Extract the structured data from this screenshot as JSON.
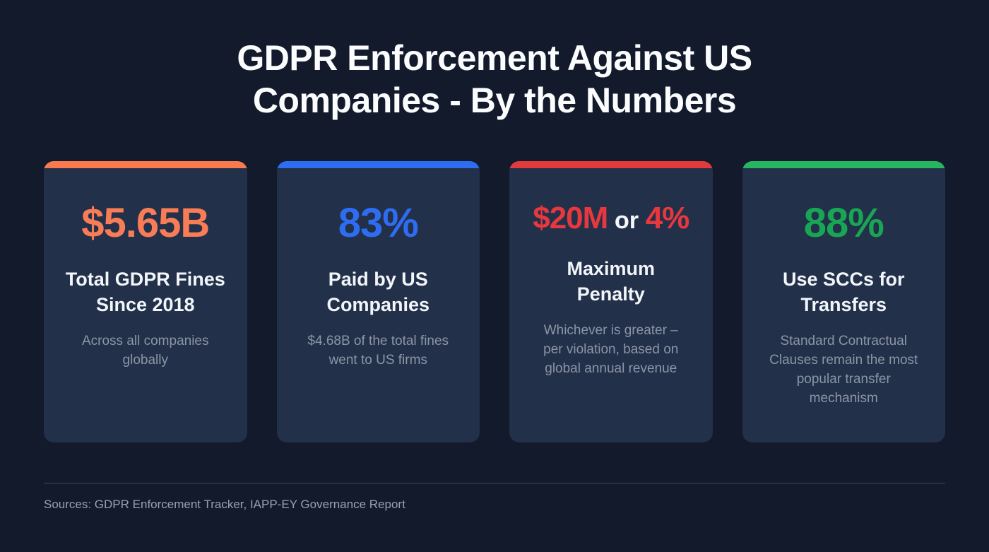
{
  "header": {
    "title_line1": "GDPR Enforcement Against US",
    "title_line2": "Companies - By the Numbers"
  },
  "cards": [
    {
      "accent": "#f87a4e",
      "value_parts": [
        {
          "text": "$5.65B",
          "color": "#f87d57"
        }
      ],
      "heading": "Total GDPR Fines\nSince 2018",
      "subtext": "Across all companies\nglobally"
    },
    {
      "accent": "#2e6cf2",
      "value_parts": [
        {
          "text": "83%",
          "color": "#2e6cf2"
        }
      ],
      "heading": "Paid by US\nCompanies",
      "subtext": "$4.68B of the total fines\nwent to US firms"
    },
    {
      "accent": "#e23b3d",
      "value_parts": [
        {
          "text": "$20M",
          "color": "#e6383e"
        },
        {
          "text": " or ",
          "color": "#f5f7fa",
          "small": true
        },
        {
          "text": "4%",
          "color": "#e6383e"
        }
      ],
      "heading": "Maximum\nPenalty",
      "subtext": "Whichever is greater –\nper violation, based on\nglobal annual revenue"
    },
    {
      "accent": "#27b561",
      "value_parts": [
        {
          "text": "88%",
          "color": "#18a654"
        }
      ],
      "heading": "Use SCCs for\nTransfers",
      "subtext": "Standard Contractual\nClauses remain the most\npopular transfer\nmechanism"
    }
  ],
  "footer": {
    "sources": "Sources: GDPR Enforcement Tracker, IAPP-EY Governance Report"
  },
  "colors": {
    "background": "#121a2c",
    "card_background": "#223049",
    "title_text": "#fbfcfe",
    "heading_text": "#f2f5f9",
    "muted_text": "#8d95a6",
    "divider": "#414a5c",
    "accent_orange": "#f87a4e",
    "accent_blue": "#2e6cf2",
    "accent_red": "#e23b3d",
    "accent_green": "#27b561"
  },
  "chart_data": {
    "type": "table",
    "title": "GDPR Enforcement Against US Companies - By the Numbers",
    "stats": [
      {
        "value": "$5.65B",
        "label": "Total GDPR Fines Since 2018",
        "note": "Across all companies globally",
        "accent_color": "#f87a4e"
      },
      {
        "value": "83%",
        "label": "Paid by US Companies",
        "note": "$4.68B of the total fines went to US firms",
        "accent_color": "#2e6cf2"
      },
      {
        "value": "$20M or 4%",
        "label": "Maximum Penalty",
        "note": "Whichever is greater – per violation, based on global annual revenue",
        "accent_color": "#e23b3d"
      },
      {
        "value": "88%",
        "label": "Use SCCs for Transfers",
        "note": "Standard Contractual Clauses remain the most popular transfer mechanism",
        "accent_color": "#27b561"
      }
    ],
    "sources": "GDPR Enforcement Tracker, IAPP-EY Governance Report"
  }
}
